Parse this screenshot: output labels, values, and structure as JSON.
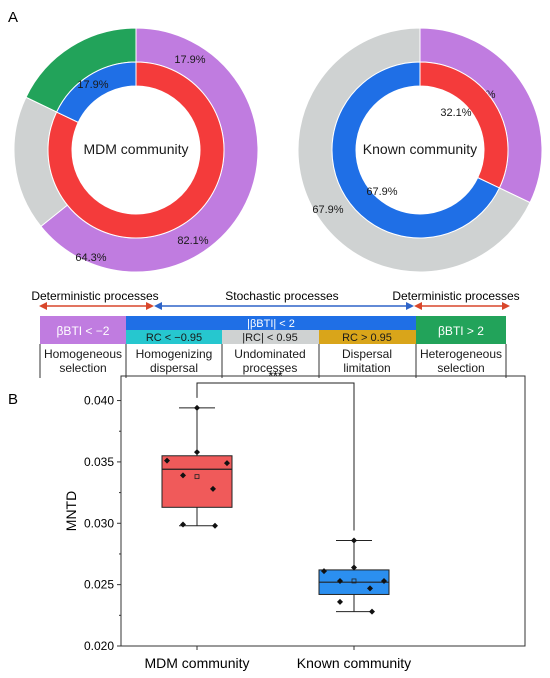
{
  "panels": {
    "a": "A",
    "b": "B"
  },
  "chart_data": [
    {
      "type": "pie",
      "subtype": "nested-donut",
      "title": "MDM community",
      "inner": {
        "values": [
          82.1,
          17.9
        ],
        "labels": [
          "82.1%",
          "17.9%"
        ],
        "colors": [
          "#f43b3b",
          "#1f6fe6"
        ]
      },
      "outer": {
        "values": [
          64.3,
          17.9,
          17.9
        ],
        "labels": [
          "64.3%",
          "17.9%",
          "17.9%"
        ],
        "colors": [
          "#c07ce0",
          "#cfd2d2",
          "#22a35a"
        ]
      }
    },
    {
      "type": "pie",
      "subtype": "nested-donut",
      "title": "Known community",
      "inner": {
        "values": [
          32.1,
          67.9
        ],
        "labels": [
          "32.1%",
          "67.9%"
        ],
        "colors": [
          "#f43b3b",
          "#1f6fe6"
        ]
      },
      "outer": {
        "values": [
          32.1,
          67.9
        ],
        "labels": [
          "32.1%",
          "67.9%"
        ],
        "colors": [
          "#c07ce0",
          "#cfd2d2"
        ]
      }
    },
    {
      "type": "box",
      "ylabel": "MNTD",
      "ylim": [
        0.02,
        0.042
      ],
      "yticks": [
        "0.020",
        "0.025",
        "0.030",
        "0.035",
        "0.040"
      ],
      "significance": "***",
      "series": [
        {
          "category": "MDM community",
          "q1": 0.0313,
          "median": 0.0344,
          "q3": 0.0355,
          "whisker_low": 0.0298,
          "whisker_high": 0.0394,
          "mean": 0.0338,
          "points": [
            0.0394,
            0.0358,
            0.0351,
            0.0349,
            0.0339,
            0.0328,
            0.0299,
            0.0298
          ],
          "color": "#f05a5a"
        },
        {
          "category": "Known community",
          "q1": 0.0242,
          "median": 0.0252,
          "q3": 0.0262,
          "whisker_low": 0.0228,
          "whisker_high": 0.0286,
          "mean": 0.0253,
          "points": [
            0.0286,
            0.0264,
            0.0261,
            0.0253,
            0.0253,
            0.0247,
            0.0236,
            0.0228
          ],
          "color": "#2b8ff0"
        }
      ]
    }
  ],
  "process_diagram": {
    "arrows": {
      "left": "Deterministic processes",
      "middle": "Stochastic processes",
      "right": "Deterministic processes"
    },
    "boxes": {
      "hom_sel": "βBTI < −2",
      "stoch": "|βBTI| < 2",
      "het_sel": "βBTI > 2",
      "rc_low": "RC < −0.95",
      "rc_mid": "|RC| < 0.95",
      "rc_high": "RC > 0.95"
    },
    "labels": [
      "Homogeneous selection",
      "Homogenizing dispersal",
      "Undominated processes",
      "Dispersal limitation",
      "Heterogeneous selection"
    ],
    "colors": {
      "selection_left": "#c07ce0",
      "stochastic": "#1f6fe6",
      "rc_low": "#26c7cf",
      "rc_mid": "#cfd2d2",
      "rc_high": "#d9a51a",
      "selection_right": "#22a35a",
      "arrow_det": "#d9472b",
      "arrow_sto": "#2e64c8"
    }
  }
}
